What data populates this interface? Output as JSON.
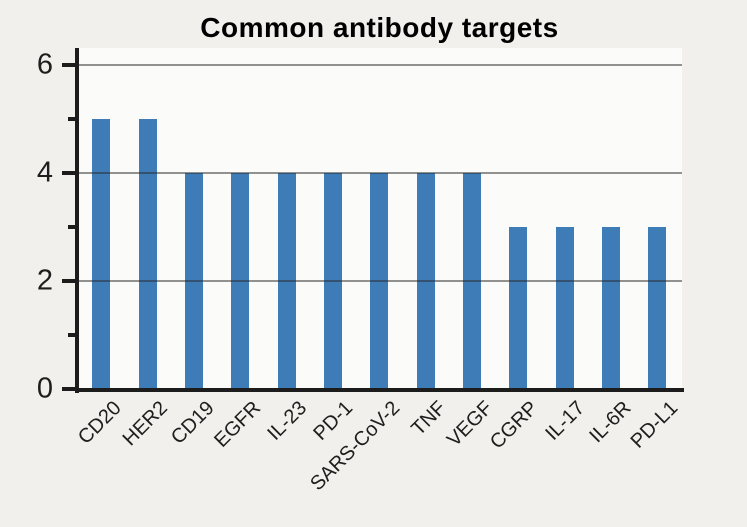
{
  "chart_data": {
    "type": "bar",
    "title": "Common antibody targets",
    "categories": [
      "CD20",
      "HER2",
      "CD19",
      "EGFR",
      "IL-23",
      "PD-1",
      "SARS-CoV-2",
      "TNF",
      "VEGF",
      "CGRP",
      "IL-17",
      "IL-6R",
      "PD-L1"
    ],
    "values": [
      5,
      5,
      4,
      4,
      4,
      4,
      4,
      4,
      4,
      3,
      3,
      3,
      3
    ],
    "xlabel": "",
    "ylabel": "",
    "ylim": [
      0,
      6
    ],
    "yticks_major": [
      0,
      2,
      4,
      6
    ],
    "yticks_minor": [
      1,
      3,
      5
    ],
    "gridlines_at": [
      2,
      4,
      6
    ],
    "grid_on": true,
    "legend": "none",
    "x_tick_rotation_deg": 45,
    "colors": {
      "bar": "#3d7cb6",
      "grid": "rgba(40,40,40,0.5)",
      "axis": "#1c1c1c",
      "text": "#1e1e1e",
      "background": "#f1f0ed",
      "plot_background": "#fbfbf9"
    }
  }
}
